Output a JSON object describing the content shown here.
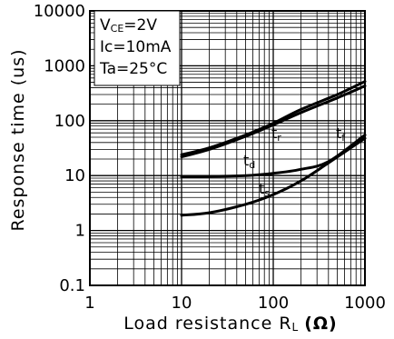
{
  "chart_data": {
    "type": "line",
    "xlabel": "Load resistance R",
    "xlabel_sub": "L",
    "xlabel_unit": "(Ω)",
    "ylabel": "Response time (us)",
    "xscale": "log",
    "yscale": "log",
    "xlim": [
      1,
      1000
    ],
    "ylim": [
      0.1,
      10000
    ],
    "grid": true,
    "x_ticks": [
      "1",
      "10",
      "100",
      "1000"
    ],
    "y_ticks": [
      "0.1",
      "1",
      "10",
      "100",
      "1000",
      "10000"
    ],
    "conditions": {
      "vce": {
        "sym": "V",
        "sub": "CE",
        "val": "=2V"
      },
      "ic": {
        "sym": "Ic",
        "val": "=10mA"
      },
      "ta": {
        "sym": "Ta",
        "val": "=25°C"
      }
    },
    "series": [
      {
        "name": "tr",
        "main": "t",
        "sub": "r",
        "x": [
          10,
          20,
          50,
          100,
          200,
          500,
          1000
        ],
        "y": [
          24,
          32,
          55,
          90,
          160,
          300,
          520
        ]
      },
      {
        "name": "tf",
        "main": "t",
        "sub": "f",
        "x": [
          10,
          20,
          50,
          100,
          200,
          500,
          1000
        ],
        "y": [
          22,
          30,
          52,
          84,
          140,
          260,
          430
        ]
      },
      {
        "name": "td",
        "main": "t",
        "sub": "d",
        "x": [
          10,
          20,
          50,
          100,
          200,
          400,
          1000
        ],
        "y": [
          9.5,
          9.6,
          10,
          11,
          13,
          18,
          55
        ]
      },
      {
        "name": "ts",
        "main": "t",
        "sub": "s",
        "x": [
          10,
          20,
          50,
          100,
          200,
          400,
          1000
        ],
        "y": [
          1.9,
          2.1,
          3,
          4.5,
          8,
          17,
          48
        ]
      }
    ]
  }
}
